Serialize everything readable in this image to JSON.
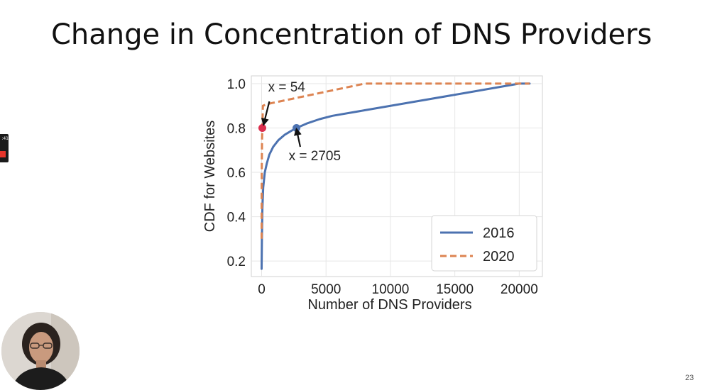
{
  "slide": {
    "title": "Change in Concentration of DNS Providers",
    "number": "23"
  },
  "overlay": {
    "clock_text": ":41",
    "record_color": "#e7352b",
    "webcam": "presenter-webcam"
  },
  "chart_data": {
    "type": "line",
    "xlabel": "Number of DNS Providers",
    "ylabel": "CDF for Websites",
    "xlim": [
      -800,
      21800
    ],
    "ylim": [
      0.13,
      1.035
    ],
    "xticks": [
      0,
      5000,
      10000,
      15000,
      20000
    ],
    "yticks": [
      0.2,
      0.4,
      0.6,
      0.8,
      1.0
    ],
    "grid": true,
    "legend_position": "bottom-right",
    "series": [
      {
        "name": "2016",
        "color": "#4c72b0",
        "dash": "solid",
        "x": [
          0,
          20,
          60,
          120,
          250,
          400,
          600,
          900,
          1300,
          1800,
          2300,
          2705,
          3500,
          4500,
          5500,
          8000,
          12000,
          16000,
          20000,
          20800
        ],
        "y": [
          0.165,
          0.3,
          0.44,
          0.53,
          0.6,
          0.64,
          0.68,
          0.715,
          0.745,
          0.77,
          0.787,
          0.8,
          0.82,
          0.84,
          0.855,
          0.88,
          0.92,
          0.96,
          1.0,
          1.0
        ]
      },
      {
        "name": "2020",
        "color": "#dd8452",
        "dash": "dashed",
        "x": [
          0,
          5,
          15,
          30,
          54,
          100,
          300,
          600,
          8000,
          20800
        ],
        "y": [
          0.3,
          0.5,
          0.65,
          0.75,
          0.8,
          0.9,
          0.905,
          0.91,
          1.0,
          1.0
        ]
      }
    ],
    "highlights": [
      {
        "x": 54,
        "y": 0.8,
        "color": "#dc2f4e",
        "label": "x = 54"
      },
      {
        "x": 2705,
        "y": 0.8,
        "color": "#4c72b0",
        "label": "x = 2705"
      }
    ],
    "annotations": [
      {
        "text": "x = 54",
        "text_x": 500,
        "text_y": 0.965,
        "arrow_from": [
          600,
          0.92
        ],
        "arrow_to": [
          150,
          0.815
        ]
      },
      {
        "text": "x = 2705",
        "text_x": 2100,
        "text_y": 0.655,
        "arrow_from": [
          3000,
          0.715
        ],
        "arrow_to": [
          2705,
          0.795
        ]
      }
    ]
  }
}
